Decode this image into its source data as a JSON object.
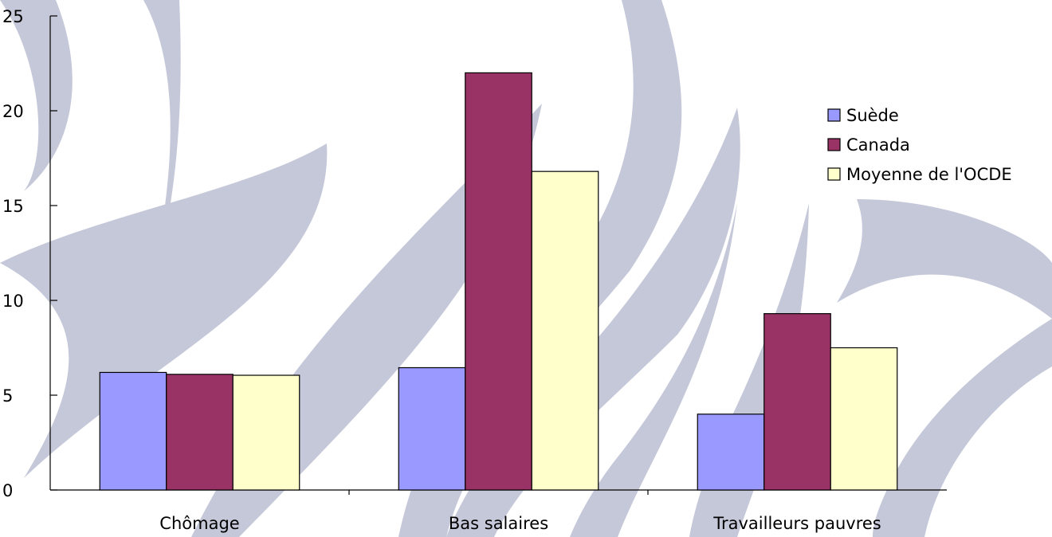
{
  "chart_data": {
    "type": "bar",
    "categories": [
      "Chômage",
      "Bas salaires",
      "Travailleurs pauvres"
    ],
    "series": [
      {
        "name": "Suède",
        "values": [
          6.2,
          6.45,
          4.0
        ],
        "color": "#9999ff"
      },
      {
        "name": "Canada",
        "values": [
          6.1,
          22.0,
          9.3
        ],
        "color": "#993366"
      },
      {
        "name": "Moyenne de l'OCDE",
        "values": [
          6.05,
          16.8,
          7.5
        ],
        "color": "#ffffcc"
      }
    ],
    "yticks": [
      0,
      5,
      10,
      15,
      20,
      25
    ],
    "ylim": [
      0,
      25
    ],
    "legend_position": "right",
    "grid": false,
    "background_decoration": "grey-blue swoosh watermark"
  }
}
